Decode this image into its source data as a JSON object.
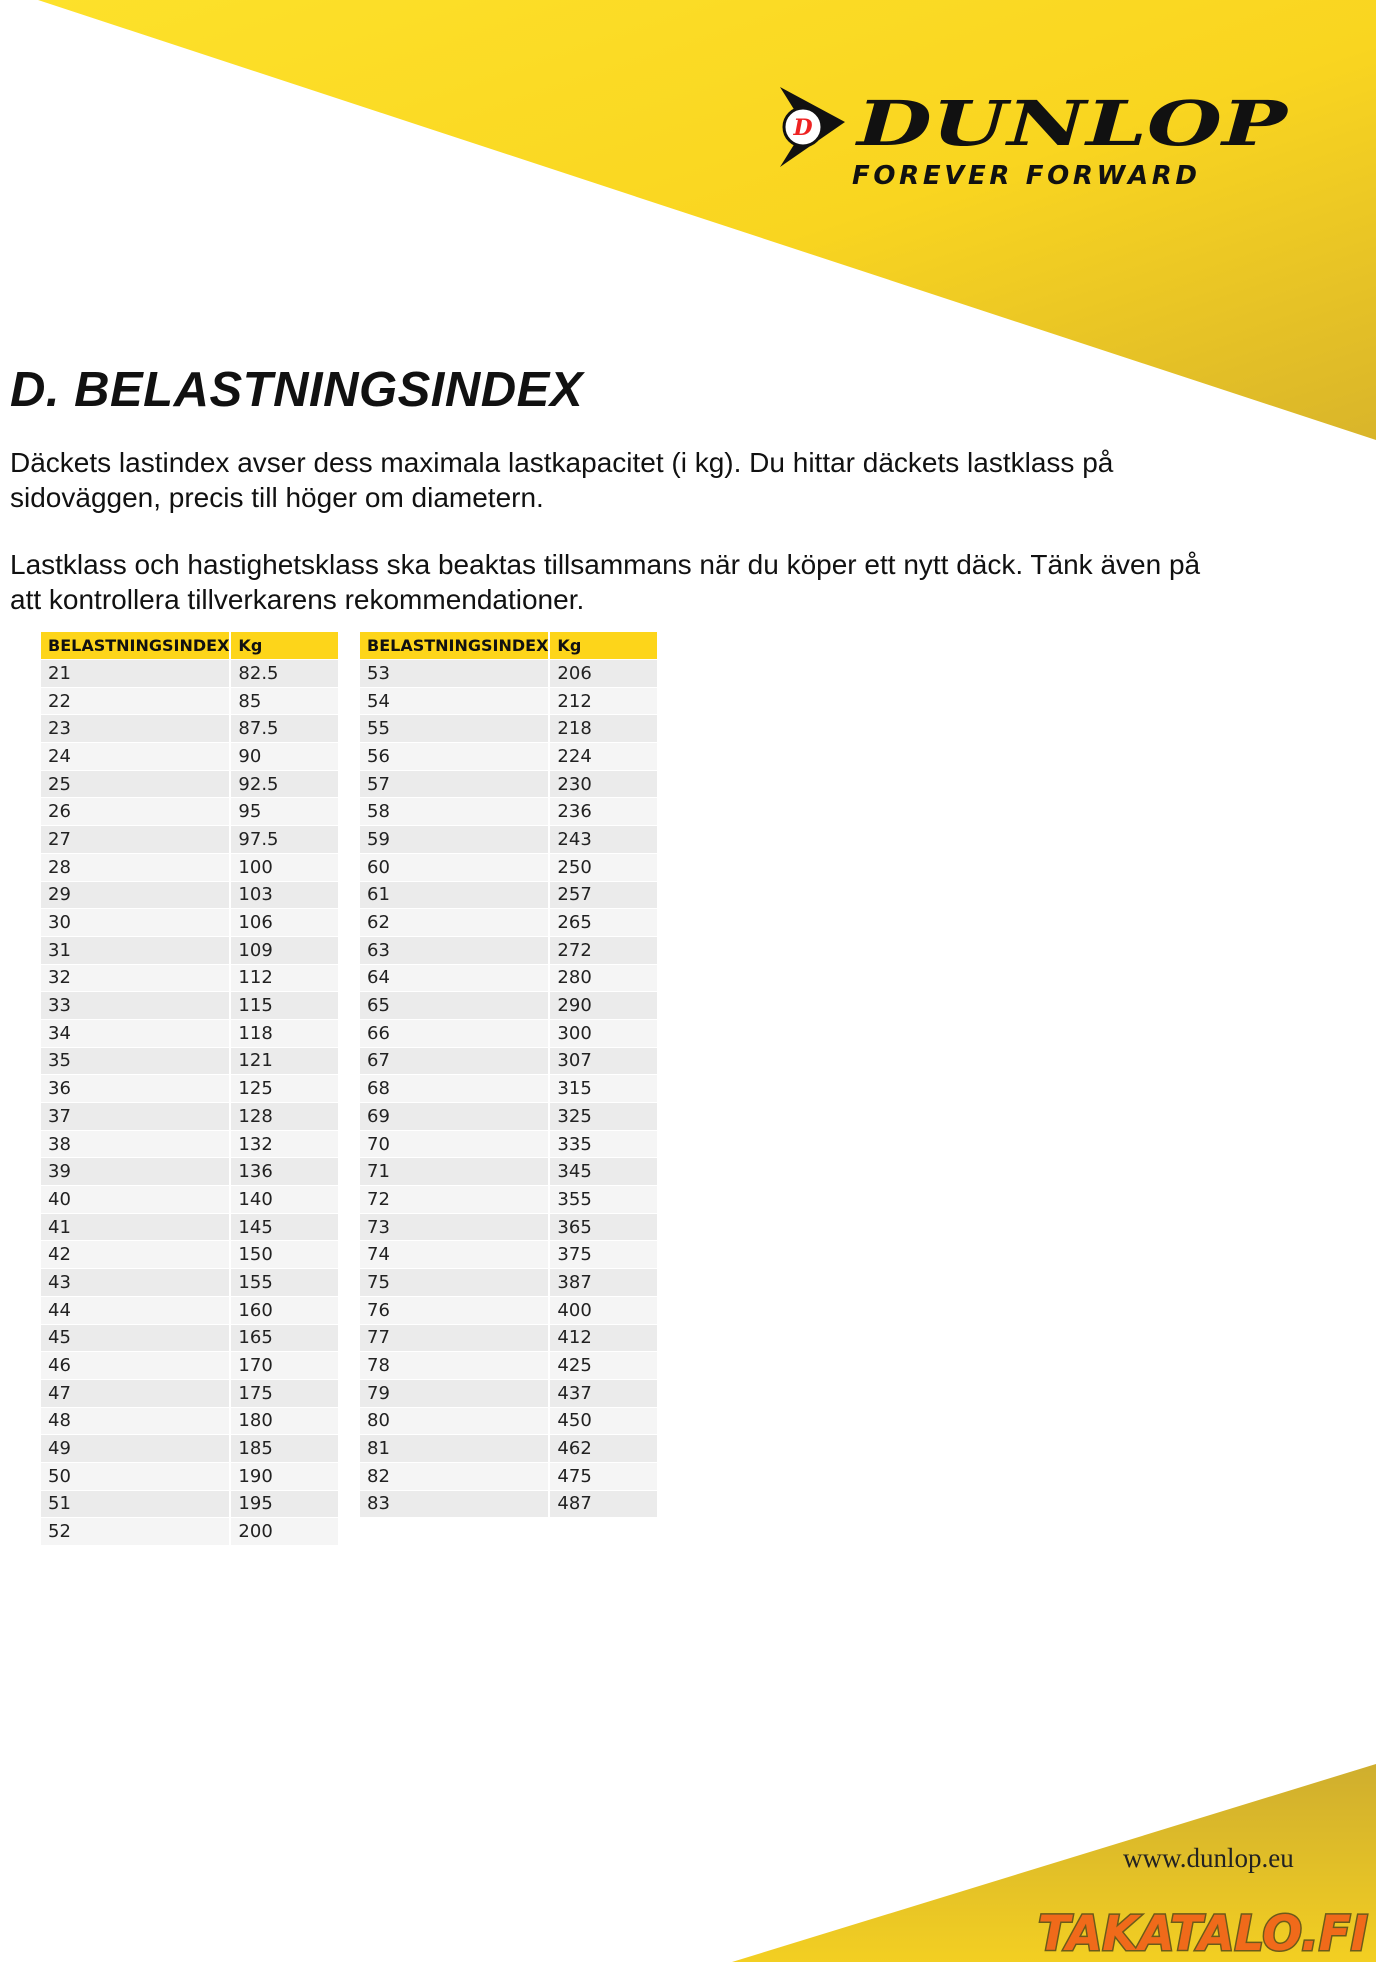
{
  "brand": {
    "name": "DUNLOP",
    "tagline": "FOREVER FORWARD",
    "logo_letter": "D",
    "accent": "#fdd51a"
  },
  "title": "D. BELASTNINGSINDEX",
  "paragraphs": [
    "Däckets lastindex avser dess maximala lastkapacitet (i kg). Du hittar däckets lastklass på sidoväggen, precis till höger om diametern.",
    "Lastklass och hastighetsklass ska beaktas tillsammans när du köper ett nytt däck. Tänk även på att kontrollera tillverkarens rekommendationer."
  ],
  "tables": [
    {
      "headers": [
        "BELASTNINGSINDEX",
        "Kg"
      ],
      "rows": [
        [
          "21",
          "82.5"
        ],
        [
          "22",
          "85"
        ],
        [
          "23",
          "87.5"
        ],
        [
          "24",
          "90"
        ],
        [
          "25",
          "92.5"
        ],
        [
          "26",
          "95"
        ],
        [
          "27",
          "97.5"
        ],
        [
          "28",
          "100"
        ],
        [
          "29",
          "103"
        ],
        [
          "30",
          "106"
        ],
        [
          "31",
          "109"
        ],
        [
          "32",
          "112"
        ],
        [
          "33",
          "115"
        ],
        [
          "34",
          "118"
        ],
        [
          "35",
          "121"
        ],
        [
          "36",
          "125"
        ],
        [
          "37",
          "128"
        ],
        [
          "38",
          "132"
        ],
        [
          "39",
          "136"
        ],
        [
          "40",
          "140"
        ],
        [
          "41",
          "145"
        ],
        [
          "42",
          "150"
        ],
        [
          "43",
          "155"
        ],
        [
          "44",
          "160"
        ],
        [
          "45",
          "165"
        ],
        [
          "46",
          "170"
        ],
        [
          "47",
          "175"
        ],
        [
          "48",
          "180"
        ],
        [
          "49",
          "185"
        ],
        [
          "50",
          "190"
        ],
        [
          "51",
          "195"
        ],
        [
          "52",
          "200"
        ]
      ]
    },
    {
      "headers": [
        "BELASTNINGSINDEX",
        "Kg"
      ],
      "rows": [
        [
          "53",
          "206"
        ],
        [
          "54",
          "212"
        ],
        [
          "55",
          "218"
        ],
        [
          "56",
          "224"
        ],
        [
          "57",
          "230"
        ],
        [
          "58",
          "236"
        ],
        [
          "59",
          "243"
        ],
        [
          "60",
          "250"
        ],
        [
          "61",
          "257"
        ],
        [
          "62",
          "265"
        ],
        [
          "63",
          "272"
        ],
        [
          "64",
          "280"
        ],
        [
          "65",
          "290"
        ],
        [
          "66",
          "300"
        ],
        [
          "67",
          "307"
        ],
        [
          "68",
          "315"
        ],
        [
          "69",
          "325"
        ],
        [
          "70",
          "335"
        ],
        [
          "71",
          "345"
        ],
        [
          "72",
          "355"
        ],
        [
          "73",
          "365"
        ],
        [
          "74",
          "375"
        ],
        [
          "75",
          "387"
        ],
        [
          "76",
          "400"
        ],
        [
          "77",
          "412"
        ],
        [
          "78",
          "425"
        ],
        [
          "79",
          "437"
        ],
        [
          "80",
          "450"
        ],
        [
          "81",
          "462"
        ],
        [
          "82",
          "475"
        ],
        [
          "83",
          "487"
        ]
      ]
    }
  ],
  "footer": {
    "url": "www.dunlop.eu",
    "watermark": "TAKATALO.FI"
  }
}
